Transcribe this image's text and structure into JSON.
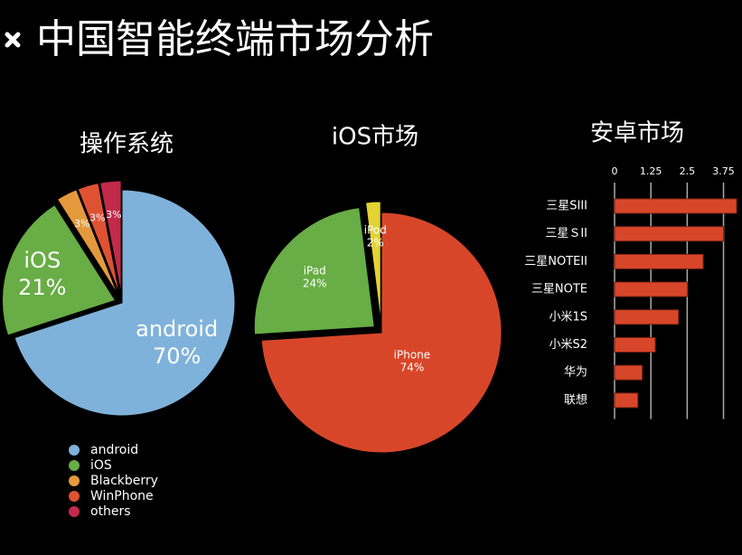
{
  "title": "中国智能终端市场分析",
  "chart_data": [
    {
      "type": "pie",
      "title": "操作系统",
      "categories": [
        "android",
        "iOS",
        "Blackberry",
        "WinPhone",
        "others"
      ],
      "values": [
        70,
        21,
        3,
        3,
        3
      ],
      "value_labels": [
        "70%",
        "21%",
        "3%",
        "3%",
        "3%"
      ],
      "colors": [
        "#7fb2da",
        "#68ad45",
        "#e49a3c",
        "#df5133",
        "#c22a4a"
      ],
      "legend": "bottom-left"
    },
    {
      "type": "pie",
      "title": "iOS市场",
      "categories": [
        "iPhone",
        "iPad",
        "iPod"
      ],
      "values": [
        74,
        24,
        2
      ],
      "value_labels": [
        "74%",
        "24%",
        "2%"
      ],
      "colors": [
        "#d8462a",
        "#68ad45",
        "#e3d433"
      ]
    },
    {
      "type": "hbar",
      "title": "安卓市场",
      "categories": [
        "三星SIII",
        "三星ＳII",
        "三星NOTEII",
        "三星NOTE",
        "小米1S",
        "小米S2",
        "华为",
        "联想"
      ],
      "values": [
        4.2,
        3.75,
        3.05,
        2.5,
        2.2,
        1.4,
        0.95,
        0.8
      ],
      "color": "#d8462a",
      "xlim": [
        0,
        4.2
      ],
      "xticks": [
        0,
        1.25,
        2.5,
        3.75
      ],
      "grid": true
    }
  ]
}
